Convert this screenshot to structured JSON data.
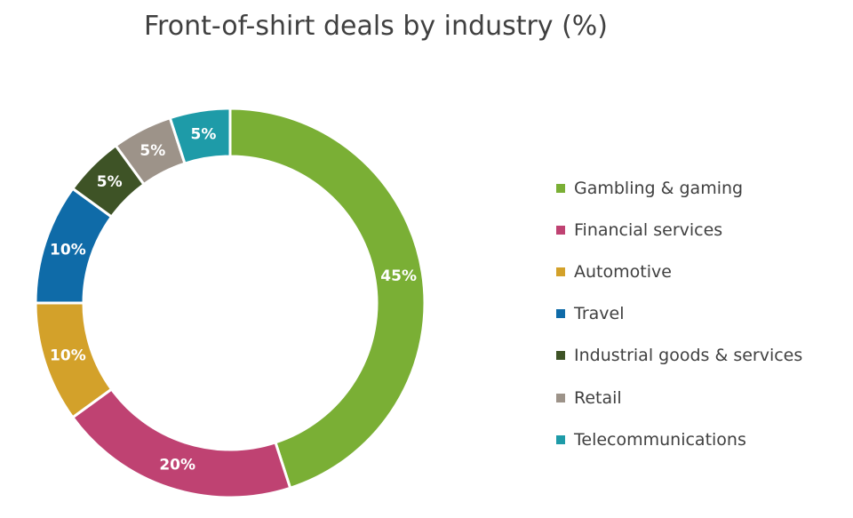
{
  "chart_data": {
    "type": "pie",
    "title": "Front-of-shirt deals by industry (%)",
    "legend_position": "right",
    "categories": [
      "Gambling & gaming",
      "Financial services",
      "Automotive",
      "Travel",
      "Industrial goods & services",
      "Retail",
      "Telecommunications"
    ],
    "values": [
      45,
      20,
      10,
      10,
      5,
      5,
      5
    ],
    "labels": [
      "45%",
      "20%",
      "10%",
      "10%",
      "5%",
      "5%",
      "5%"
    ],
    "colors": [
      "#7aaf35",
      "#bf4272",
      "#d3a12a",
      "#0f6ba8",
      "#3e5326",
      "#9d9389",
      "#1e9ba8"
    ]
  }
}
